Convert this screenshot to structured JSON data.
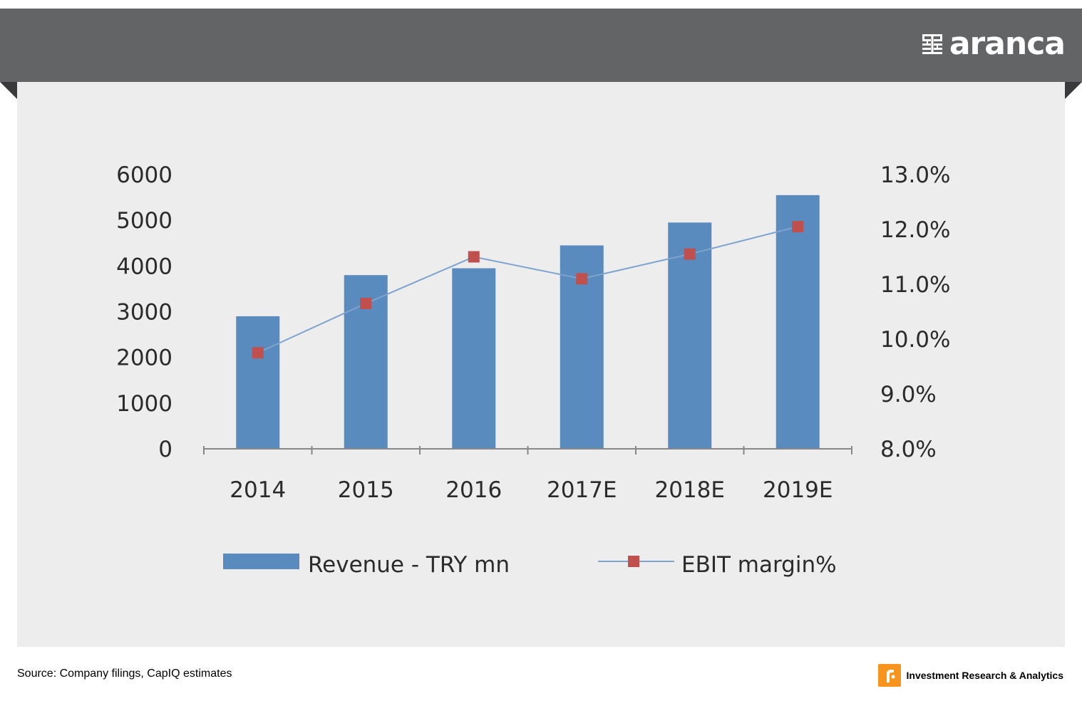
{
  "brand": {
    "name": "aranca",
    "logo_icon": "aranca-grid-icon"
  },
  "chart_data": {
    "type": "bar",
    "categories": [
      "2014",
      "2015",
      "2016",
      "2017E",
      "2018E",
      "2019E"
    ],
    "series": [
      {
        "name": "Revenue - TRY mn",
        "type": "bar",
        "axis": "left",
        "color": "#5a8bbf",
        "values": [
          2900,
          3800,
          3950,
          4450,
          4950,
          5550
        ]
      },
      {
        "name": "EBIT margin%",
        "type": "line",
        "axis": "right",
        "color": "#7da3cf",
        "marker_color": "#c0504d",
        "values": [
          9.75,
          10.65,
          11.5,
          11.1,
          11.55,
          12.05
        ]
      }
    ],
    "y_left": {
      "min": 0,
      "max": 6000,
      "ticks": [
        "0",
        "1000",
        "2000",
        "3000",
        "4000",
        "5000",
        "6000"
      ]
    },
    "y_right": {
      "min": 8.0,
      "max": 13.0,
      "ticks": [
        "8.0%",
        "9.0%",
        "10.0%",
        "11.0%",
        "12.0%",
        "13.0%"
      ]
    },
    "legend_position": "bottom",
    "grid": false
  },
  "footer": {
    "source": "Source: Company filings, CapIQ estimates",
    "tagline": "Investment  Research & Analytics",
    "logo_icon": "investment-logo-icon"
  }
}
